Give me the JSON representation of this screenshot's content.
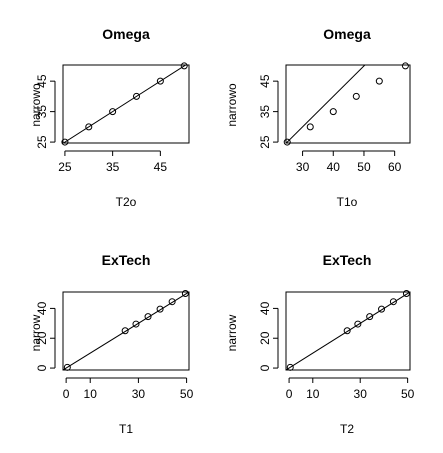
{
  "chart_data": [
    {
      "type": "scatter",
      "title": "Omega",
      "xlabel": "T2o",
      "ylabel": "narrowo",
      "xlim": [
        24.6,
        51
      ],
      "ylim": [
        24.7,
        50.3
      ],
      "xticks": [
        25,
        35,
        45
      ],
      "yticks": [
        25,
        35,
        45
      ],
      "points": [
        [
          25,
          25
        ],
        [
          30,
          30
        ],
        [
          35,
          35
        ],
        [
          40,
          40
        ],
        [
          45,
          45
        ],
        [
          50,
          50
        ]
      ],
      "reference_line": {
        "slope": 1,
        "intercept": 0
      },
      "grid": false
    },
    {
      "type": "scatter",
      "title": "Omega",
      "xlabel": "T1o",
      "ylabel": "narrowo",
      "xlim": [
        24.6,
        65
      ],
      "ylim": [
        24.7,
        50.3
      ],
      "xticks": [
        30,
        40,
        50,
        60
      ],
      "yticks": [
        25,
        35,
        45
      ],
      "points": [
        [
          25,
          25
        ],
        [
          32.5,
          30
        ],
        [
          40,
          35
        ],
        [
          47.5,
          40
        ],
        [
          55,
          45
        ],
        [
          63.5,
          50
        ]
      ],
      "reference_line": {
        "slope": 1,
        "intercept": 0
      },
      "grid": false
    },
    {
      "type": "scatter",
      "title": "ExTech",
      "xlabel": "T1",
      "ylabel": "narrow",
      "xlim": [
        -1.3,
        51
      ],
      "ylim": [
        -1.3,
        51
      ],
      "xticks": [
        0,
        10,
        30,
        50
      ],
      "yticks": [
        0,
        20,
        40
      ],
      "points": [
        [
          0.5,
          0.5
        ],
        [
          24.5,
          25
        ],
        [
          29,
          29.5
        ],
        [
          34,
          34.5
        ],
        [
          39,
          39.5
        ],
        [
          44,
          44.5
        ],
        [
          49.5,
          50
        ]
      ],
      "reference_line": {
        "slope": 1,
        "intercept": 0
      },
      "grid": false
    },
    {
      "type": "scatter",
      "title": "ExTech",
      "xlabel": "T2",
      "ylabel": "narrow",
      "xlim": [
        -1.3,
        51
      ],
      "ylim": [
        -1.3,
        51
      ],
      "xticks": [
        0,
        10,
        30,
        50
      ],
      "yticks": [
        0,
        20,
        40
      ],
      "points": [
        [
          0.5,
          0.5
        ],
        [
          24.5,
          25
        ],
        [
          29,
          29.5
        ],
        [
          34,
          34.5
        ],
        [
          39,
          39.5
        ],
        [
          44,
          44.5
        ],
        [
          49.5,
          50
        ]
      ],
      "reference_line": {
        "slope": 1,
        "intercept": 0
      },
      "grid": false
    }
  ]
}
